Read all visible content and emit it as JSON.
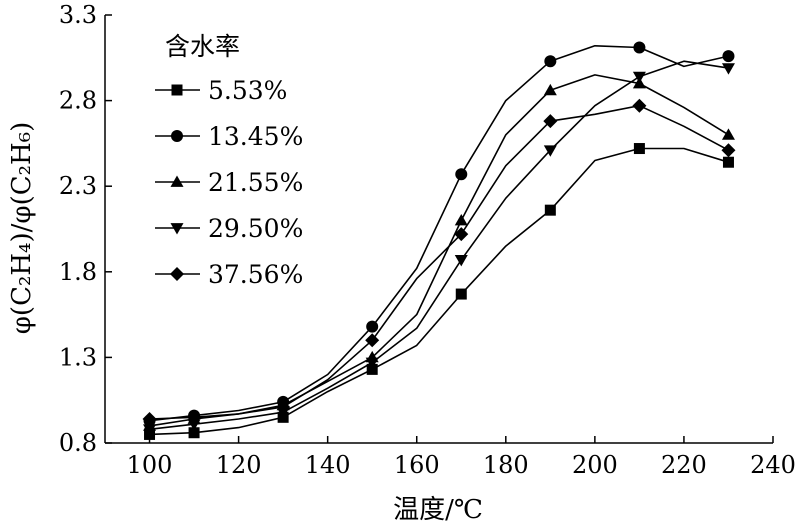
{
  "chart_data": {
    "type": "line",
    "xlabel": "温度/℃",
    "ylabel": "φ(C₂H₄)/φ(C₂H₆)",
    "xlim": [
      90,
      240
    ],
    "ylim": [
      0.8,
      3.3
    ],
    "xticks": [
      "100",
      "120",
      "140",
      "160",
      "180",
      "200",
      "220",
      "240"
    ],
    "yticks": [
      "0.8",
      "1.3",
      "1.8",
      "2.3",
      "2.8",
      "3.3"
    ],
    "legend_title": "含水率",
    "legend_position": "top-left",
    "grid": false,
    "x": [
      100,
      110,
      120,
      130,
      140,
      150,
      160,
      170,
      180,
      190,
      200,
      210,
      220,
      230
    ],
    "marker_x": [
      100,
      110,
      130,
      150,
      170,
      190,
      210,
      230
    ],
    "series": [
      {
        "name": "5.53%",
        "marker": "square",
        "values": [
          0.85,
          0.86,
          0.89,
          0.95,
          1.1,
          1.23,
          1.37,
          1.67,
          1.95,
          2.16,
          2.45,
          2.52,
          2.52,
          2.44
        ]
      },
      {
        "name": "13.45%",
        "marker": "circle",
        "values": [
          0.93,
          0.96,
          0.99,
          1.04,
          1.2,
          1.48,
          1.82,
          2.37,
          2.8,
          3.03,
          3.12,
          3.11,
          3.0,
          3.06
        ]
      },
      {
        "name": "21.55%",
        "marker": "triangle-up",
        "values": [
          0.9,
          0.94,
          0.97,
          1.02,
          1.16,
          1.3,
          1.55,
          2.1,
          2.6,
          2.86,
          2.95,
          2.9,
          2.76,
          2.6
        ]
      },
      {
        "name": "29.50%",
        "marker": "triangle-down",
        "values": [
          0.88,
          0.91,
          0.94,
          0.98,
          1.12,
          1.27,
          1.47,
          1.87,
          2.23,
          2.51,
          2.77,
          2.94,
          3.03,
          2.99
        ]
      },
      {
        "name": "37.56%",
        "marker": "diamond",
        "values": [
          0.94,
          0.95,
          0.97,
          1.01,
          1.17,
          1.4,
          1.76,
          2.02,
          2.42,
          2.68,
          2.72,
          2.77,
          2.65,
          2.51
        ]
      }
    ]
  }
}
